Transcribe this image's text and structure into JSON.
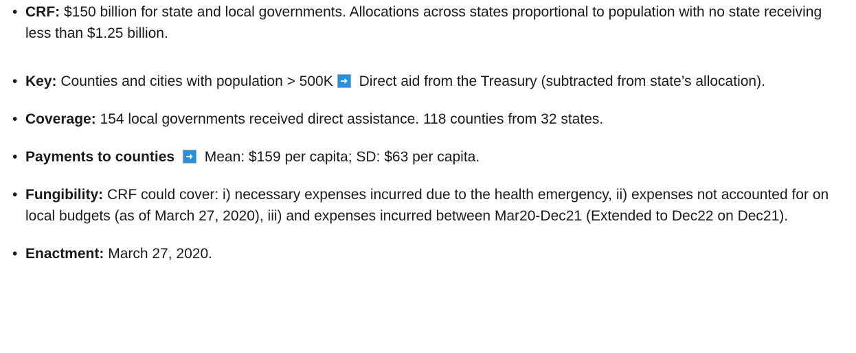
{
  "items": [
    {
      "label": "CRF:",
      "text": "$150 billion for state and local governments. Allocations across states proportional to population with no state receiving less than $1.25 billion."
    },
    {
      "label": "Key:",
      "text": "Counties and cities with population > 500K",
      "text_after": "Direct aid from the Treasury (subtracted from state’s allocation)."
    },
    {
      "label": "Coverage:",
      "text": "154 local governments received direct assistance. 118 counties from 32 states."
    },
    {
      "label": "Payments to counties",
      "text": "",
      "text_after": "Mean: $159 per capita; SD: $63 per capita."
    },
    {
      "label": "Fungibility:",
      "text": "CRF could cover: i) necessary expenses incurred due to the health emergency, ii) expenses not accounted for on local budgets (as of March 27, 2020), iii) and expenses incurred between Mar20-Dec21 (Extended to Dec22 on Dec21)."
    },
    {
      "label": "Enactment:",
      "text": "March 27, 2020."
    }
  ]
}
